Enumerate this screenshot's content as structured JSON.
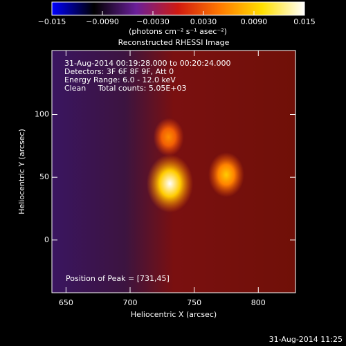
{
  "chart_data": {
    "type": "image",
    "title": "Reconstructed RHESSI Image",
    "xlabel": "Heliocentric X (arcsec)",
    "ylabel": "Heliocentric Y (arcsec)",
    "xlim": [
      639,
      829
    ],
    "ylim": [
      -42,
      151
    ],
    "xticks": [
      650,
      700,
      750,
      800
    ],
    "yticks": [
      0,
      50,
      100
    ],
    "annotations": [
      "31-Aug-2014 00:19:28.000 to 00:20:24.000",
      "Detectors: 3F 6F 8F 9F, Att 0",
      "Energy Range: 6.0 - 12.0 keV",
      "Clean     Total counts: 5.05E+03"
    ],
    "peak_label": "Position of Peak = [731,45]",
    "colorbar": {
      "label": "(photons cm⁻² s⁻¹ asec⁻²)",
      "lim": [
        -0.015,
        0.015
      ],
      "ticks": [
        {
          "value": -0.015,
          "label": "−0.015"
        },
        {
          "value": -0.009,
          "label": "−0.0090"
        },
        {
          "value": -0.003,
          "label": "−0.0030"
        },
        {
          "value": 0.003,
          "label": "0.0030"
        },
        {
          "value": 0.009,
          "label": "0.0090"
        },
        0.015
      ],
      "colors": [
        "#0000ff",
        "#000000",
        "#6a1f9a",
        "#d01a10",
        "#ff7a00",
        "#ffe000",
        "#ffffff"
      ]
    },
    "sources": {
      "x": [
        731,
        775,
        730
      ],
      "y": [
        45,
        52,
        82
      ],
      "values": [
        0.015,
        0.009,
        0.006
      ]
    },
    "timestamp": "31-Aug-2014 11:25"
  }
}
